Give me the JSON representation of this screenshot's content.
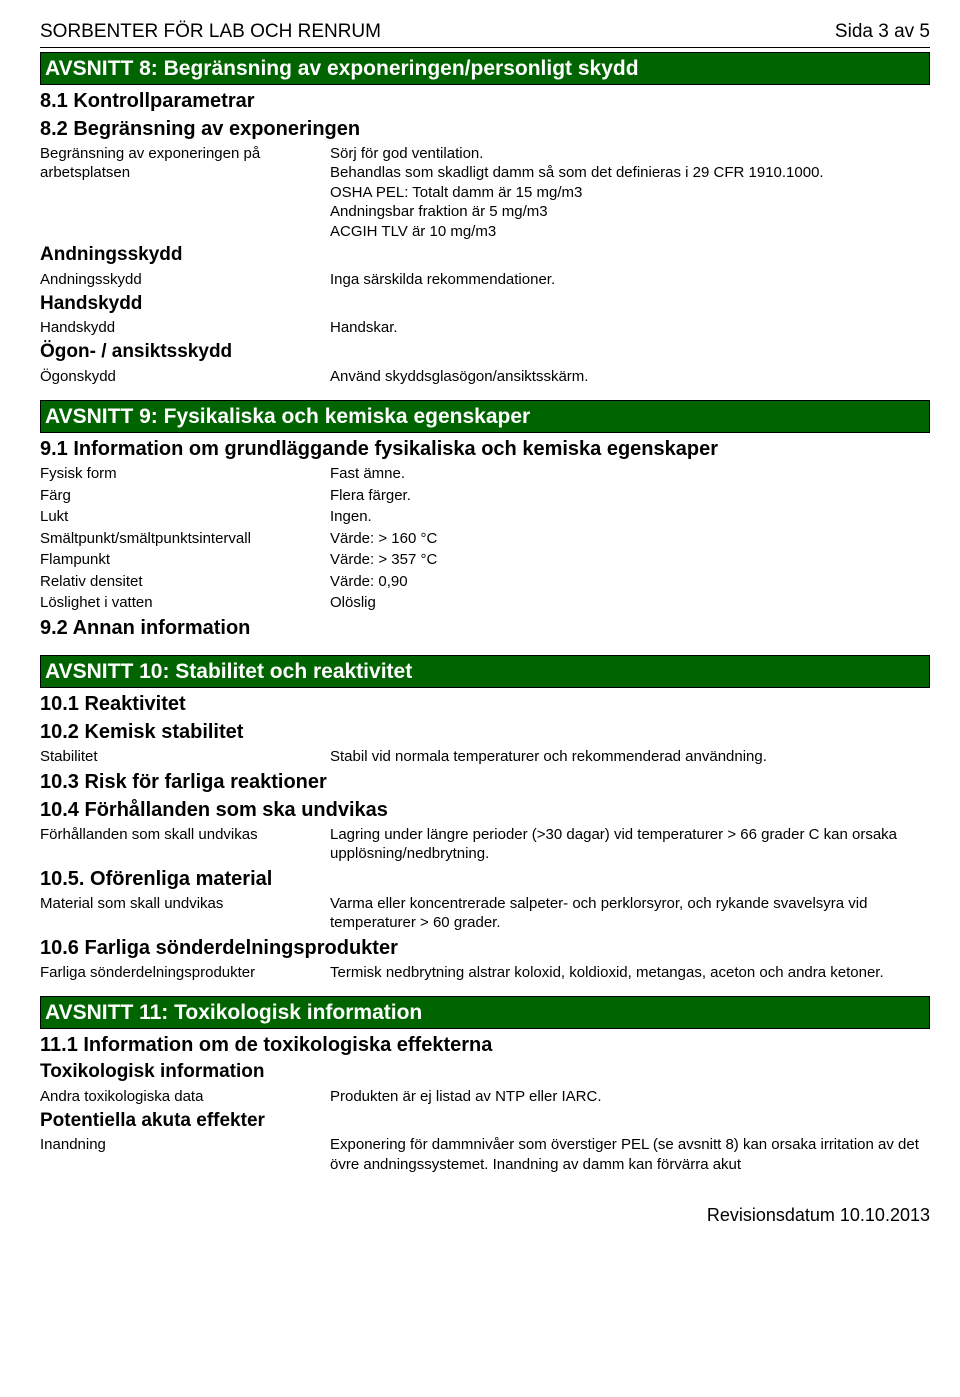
{
  "page": {
    "doc_title": "SORBENTER FÖR LAB OCH RENRUM",
    "page_indicator": "Sida 3 av 5",
    "revision": "Revisionsdatum 10.10.2013"
  },
  "section8": {
    "title": "AVSNITT 8: Begränsning av exponeringen/personligt skydd",
    "h_8_1": "8.1 Kontrollparametrar",
    "h_8_2": "8.2 Begränsning av exponeringen",
    "exposure_limit_key": "Begränsning av exponeringen på arbetsplatsen",
    "exposure_limit_val": "Sörj för god ventilation.\nBehandlas som skadligt damm så som det definieras i 29 CFR 1910.1000.\nOSHA PEL: Totalt damm är 15 mg/m3\nAndningsbar fraktion är 5 mg/m3\nACGIH TLV är 10 mg/m3",
    "resp_heading": "Andningsskydd",
    "resp_key": "Andningsskydd",
    "resp_val": "Inga särskilda rekommendationer.",
    "hand_heading": "Handskydd",
    "hand_key": "Handskydd",
    "hand_val": "Handskar.",
    "eye_heading": "Ögon- / ansiktsskydd",
    "eye_key": "Ögonskydd",
    "eye_val": "Använd skyddsglasögon/ansiktsskärm."
  },
  "section9": {
    "title": "AVSNITT 9: Fysikaliska och kemiska egenskaper",
    "h_9_1": "9.1 Information om grundläggande fysikaliska och kemiska egenskaper",
    "rows": [
      {
        "k": "Fysisk form",
        "v": "Fast ämne."
      },
      {
        "k": "Färg",
        "v": "Flera färger."
      },
      {
        "k": "Lukt",
        "v": "Ingen."
      },
      {
        "k": "Smältpunkt/smältpunktsintervall",
        "v": "Värde: > 160 °C"
      },
      {
        "k": "Flampunkt",
        "v": "Värde: > 357 °C"
      },
      {
        "k": "Relativ densitet",
        "v": "Värde: 0,90"
      },
      {
        "k": "Löslighet i vatten",
        "v": "Olöslig"
      }
    ],
    "h_9_2": "9.2 Annan information"
  },
  "section10": {
    "title": "AVSNITT 10: Stabilitet och reaktivitet",
    "h_10_1": "10.1 Reaktivitet",
    "h_10_2": "10.2 Kemisk stabilitet",
    "stability_k": "Stabilitet",
    "stability_v": "Stabil vid normala temperaturer och rekommenderad användning.",
    "h_10_3": "10.3 Risk för farliga reaktioner",
    "h_10_4": "10.4 Förhållanden som ska undvikas",
    "conditions_k": "Förhållanden som skall undvikas",
    "conditions_v": "Lagring under längre perioder (>30 dagar) vid temperaturer > 66 grader C kan orsaka upplösning/nedbrytning.",
    "h_10_5": "10.5. Oförenliga material",
    "materials_k": "Material som skall undvikas",
    "materials_v": "Varma eller koncentrerade salpeter- och perklorsyror, och rykande svavelsyra vid temperaturer > 60 grader.",
    "h_10_6": "10.6 Farliga sönderdelningsprodukter",
    "decomp_k": "Farliga sönderdelningsprodukter",
    "decomp_v": "Termisk nedbrytning alstrar koloxid, koldioxid, metangas, aceton och andra ketoner."
  },
  "section11": {
    "title": "AVSNITT 11: Toxikologisk information",
    "h_11_1": "11.1 Information om de toxikologiska effekterna",
    "tox_heading": "Toxikologisk information",
    "tox_k": "Andra toxikologiska data",
    "tox_v": "Produkten är ej listad av NTP eller IARC.",
    "acute_heading": "Potentiella akuta effekter",
    "inhalation_k": "Inandning",
    "inhalation_v": "Exponering för dammnivåer som överstiger PEL (se avsnitt 8) kan orsaka irritation av det övre andningssystemet. Inandning av damm kan förvärra akut"
  },
  "colors": {
    "banner_bg": "#006400",
    "banner_text": "#ffffff",
    "text": "#000000",
    "background": "#ffffff"
  }
}
